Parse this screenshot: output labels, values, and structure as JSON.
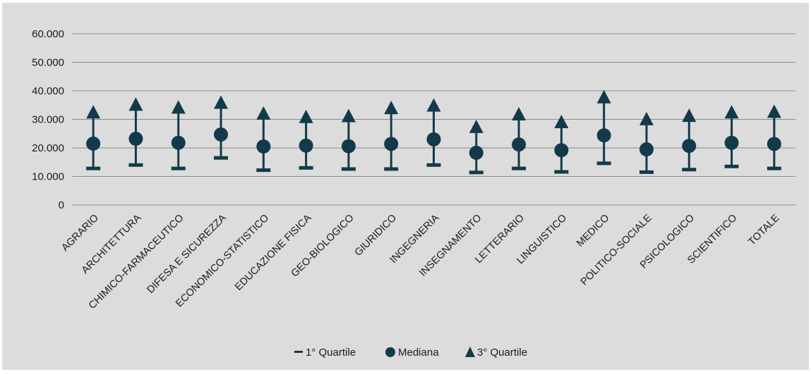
{
  "chart_data": {
    "type": "scatter",
    "categories": [
      "AGRARIO",
      "ARCHITETTURA",
      "CHIMICO-FARMACEUTICO",
      "DIFESA E SICUREZZA",
      "ECONOMICO-STATISTICO",
      "EDUCAZIONE FISICA",
      "GEO-BIOLOGICO",
      "GIURIDICO",
      "INGEGNERIA",
      "INSEGNAMENTO",
      "LETTERARIO",
      "LINGUISTICO",
      "MEDICO",
      "POLITICO-SOCIALE",
      "PSICOLOGICO",
      "SCIENTIFICO",
      "TOTALE"
    ],
    "series": [
      {
        "name": "1° Quartile",
        "marker": "dash",
        "values": [
          12800,
          14000,
          12800,
          16500,
          12200,
          13000,
          12600,
          12600,
          14000,
          11400,
          12800,
          11600,
          14600,
          11500,
          12400,
          13500,
          12800
        ]
      },
      {
        "name": "Mediana",
        "marker": "circle",
        "values": [
          21500,
          23200,
          21800,
          24700,
          20500,
          20800,
          20600,
          21400,
          23000,
          18300,
          21200,
          19200,
          24400,
          19500,
          20700,
          21800,
          21400
        ]
      },
      {
        "name": "3° Quartile",
        "marker": "triangle",
        "values": [
          31800,
          34500,
          33500,
          35200,
          31400,
          30200,
          30500,
          33300,
          34200,
          26700,
          31100,
          28400,
          37100,
          29400,
          30600,
          31800,
          32000
        ]
      }
    ],
    "ylim": [
      0,
      60000
    ],
    "yticks": [
      0,
      10000,
      20000,
      30000,
      40000,
      50000,
      60000
    ],
    "ytick_labels": [
      "0",
      "10.000",
      "20.000",
      "30.000",
      "40.000",
      "50.000",
      "60.000"
    ],
    "grid": true,
    "legend_position": "bottom-center",
    "colors": {
      "marker": "#123a4a",
      "grid": "#8c8c8c",
      "background": "#dcdcdc"
    }
  }
}
